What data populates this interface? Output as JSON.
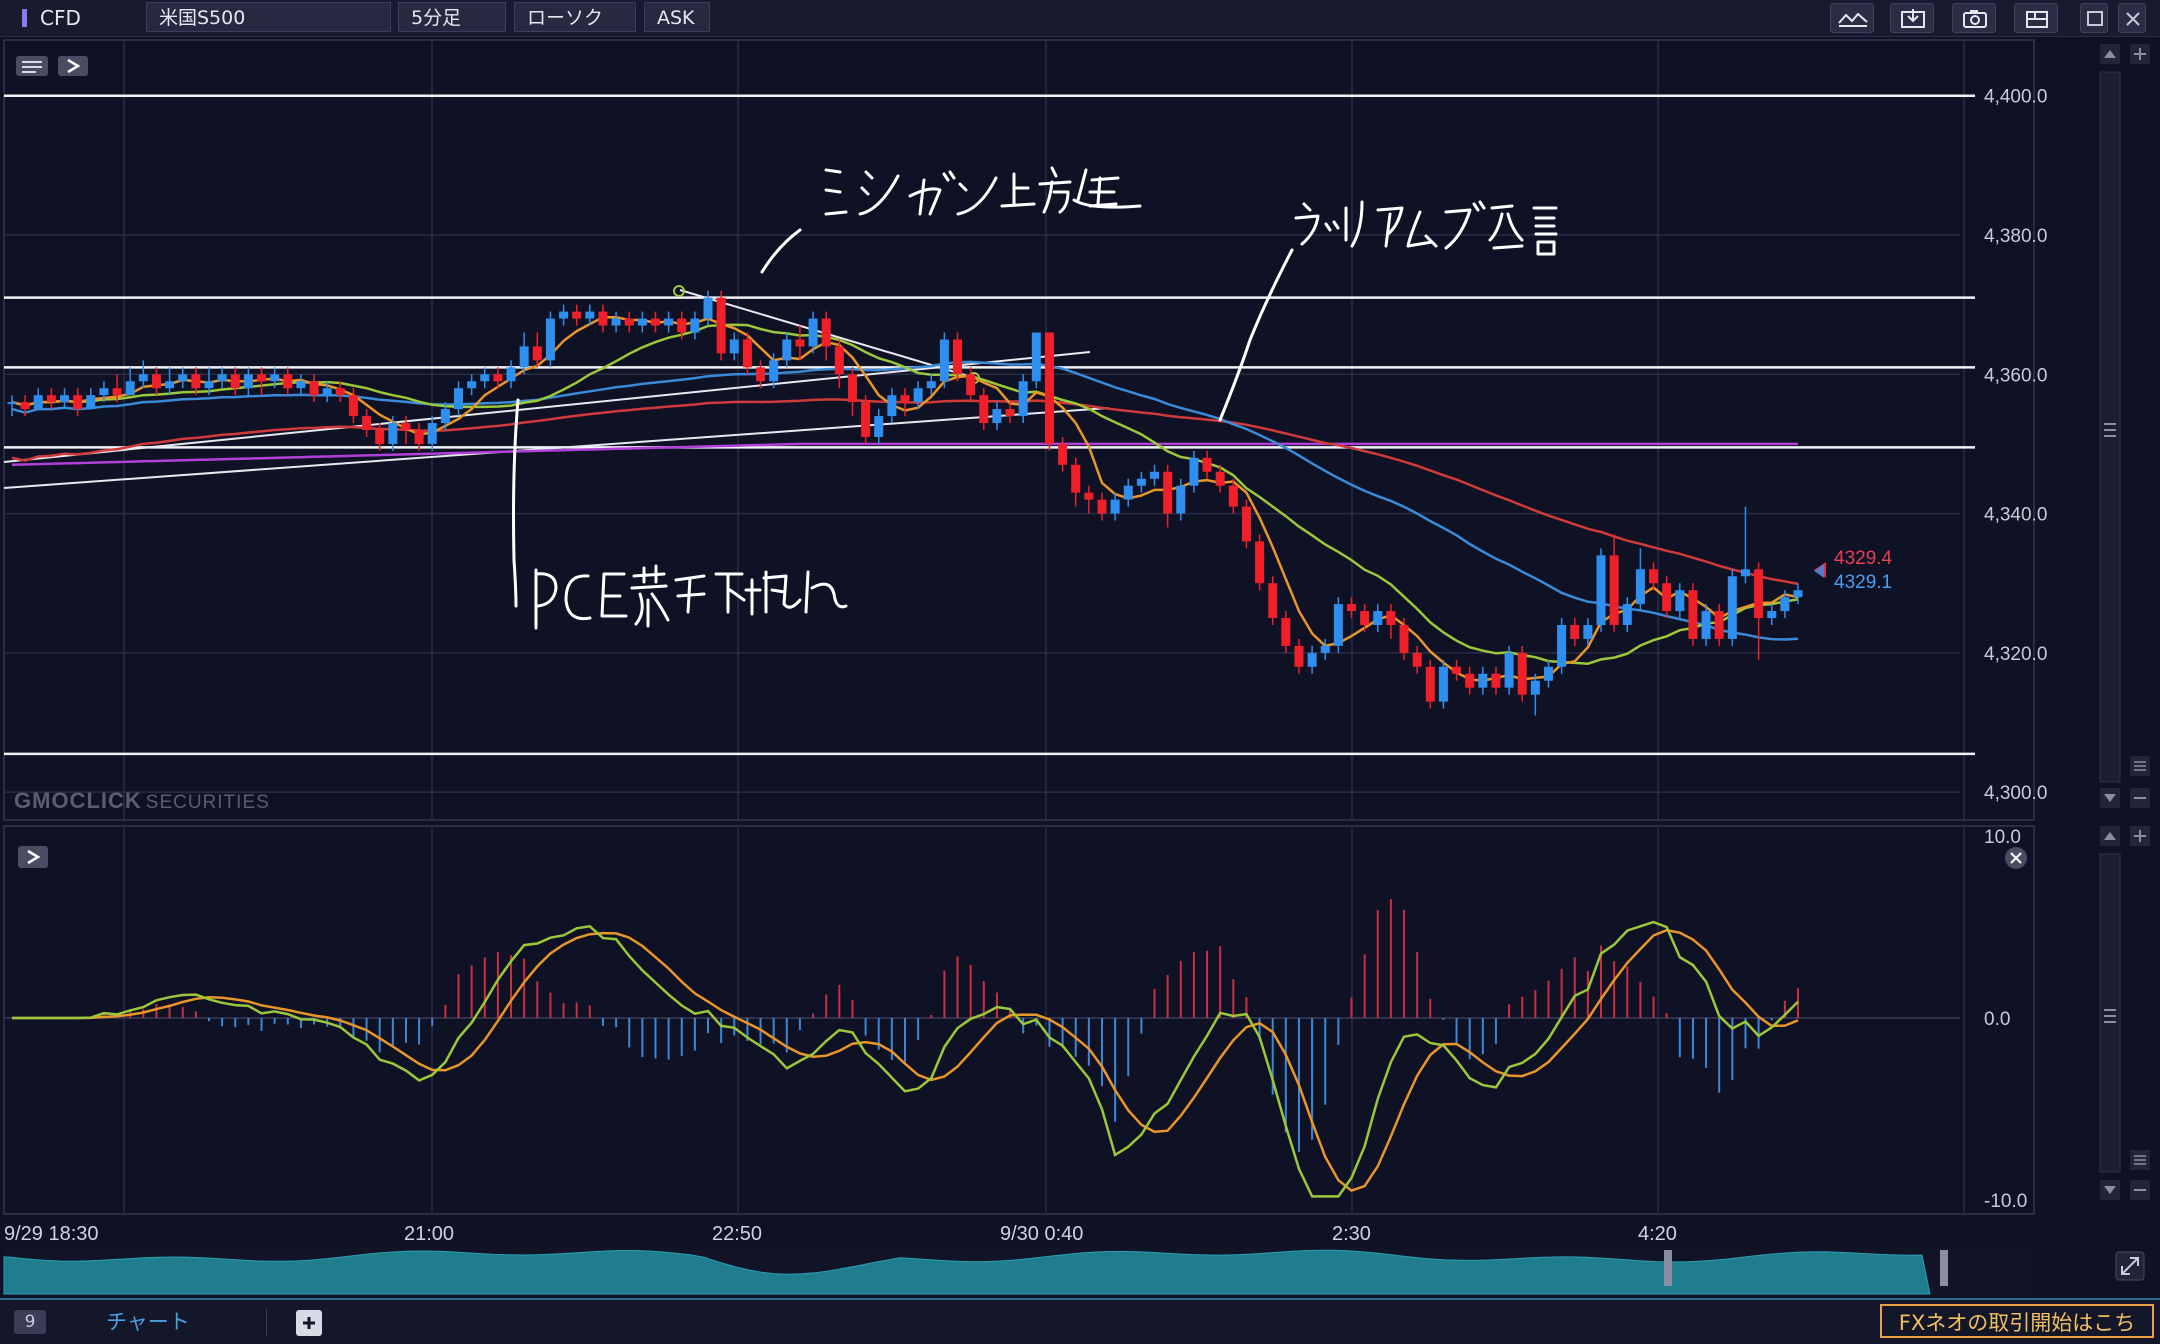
{
  "toolbar": {
    "market": "CFD",
    "symbol": "米国S500",
    "timeframe": "5分足",
    "chart_type": "ローソク",
    "price_side": "ASK",
    "icons": [
      "indicator-icon",
      "save-icon",
      "camera-icon",
      "layout-icon",
      "maximize-icon",
      "close-icon"
    ]
  },
  "watermark": {
    "brand": "GMOCLICK",
    "suffix": "SECURITIES"
  },
  "annotations": {
    "michigan": "ミシガン上方修正",
    "williams": "ウィリアムズ発言",
    "pce": "PCE若干下振れ"
  },
  "price_labels": {
    "ask": "4329.4",
    "bid": "4329.1"
  },
  "colors": {
    "up": "#2f8ff0",
    "down": "#f0202a",
    "ma_orange": "#e8952a",
    "ma_green": "#9bc83a",
    "ma_blue": "#3a8ad8",
    "ma_red": "#d03a3a",
    "ma_purple": "#b040d8"
  },
  "bottom": {
    "tab_count": "9",
    "tab_label": "チャート",
    "cta": "FXネオの取引開始はこち"
  },
  "chart_data": [
    {
      "type": "candlestick",
      "panel": "price",
      "y_ticks": [
        "4,400.0",
        "4,380.0",
        "4,360.0",
        "4,340.0",
        "4,320.0",
        "4,300.0"
      ],
      "ylim": [
        4296,
        4408
      ],
      "x_ticks": [
        "9/29 18:30",
        "21:00",
        "22:50",
        "9/30 0:40",
        "2:30",
        "4:20"
      ],
      "horizontal_lines": [
        4400,
        4371,
        4361,
        4349.5,
        4305.5
      ],
      "candles": [
        [
          4356,
          4356,
          4354,
          4357
        ],
        [
          4356,
          4355,
          4354,
          4357
        ],
        [
          4355,
          4357,
          4355,
          4358
        ],
        [
          4357,
          4356,
          4355,
          4358
        ],
        [
          4356,
          4357,
          4355,
          4358
        ],
        [
          4357,
          4355,
          4354,
          4358
        ],
        [
          4355,
          4357,
          4355,
          4358
        ],
        [
          4357,
          4358,
          4356,
          4359
        ],
        [
          4358,
          4357,
          4356,
          4360
        ],
        [
          4357,
          4359,
          4357,
          4361
        ],
        [
          4359,
          4360,
          4358,
          4362
        ],
        [
          4360,
          4358,
          4357,
          4361
        ],
        [
          4358,
          4359,
          4357,
          4361
        ],
        [
          4359,
          4360,
          4358,
          4361
        ],
        [
          4360,
          4358,
          4357,
          4361
        ],
        [
          4358,
          4359,
          4357,
          4361
        ],
        [
          4359,
          4360,
          4358,
          4361
        ],
        [
          4360,
          4358,
          4357,
          4361
        ],
        [
          4358,
          4360,
          4357,
          4361
        ],
        [
          4360,
          4359,
          4357,
          4361
        ],
        [
          4359,
          4360,
          4358,
          4361
        ],
        [
          4360,
          4358,
          4357,
          4361
        ],
        [
          4358,
          4359,
          4357,
          4360
        ],
        [
          4359,
          4357,
          4356,
          4360
        ],
        [
          4357,
          4358,
          4356,
          4359
        ],
        [
          4358,
          4357,
          4356,
          4359
        ],
        [
          4357,
          4354,
          4353,
          4358
        ],
        [
          4354,
          4352,
          4351,
          4355
        ],
        [
          4352,
          4350,
          4349,
          4353
        ],
        [
          4350,
          4353,
          4349,
          4354
        ],
        [
          4353,
          4352,
          4350,
          4354
        ],
        [
          4352,
          4350,
          4349,
          4353
        ],
        [
          4350,
          4353,
          4349,
          4354
        ],
        [
          4353,
          4355,
          4352,
          4356
        ],
        [
          4355,
          4358,
          4354,
          4359
        ],
        [
          4358,
          4359,
          4357,
          4360
        ],
        [
          4359,
          4360,
          4358,
          4361
        ],
        [
          4360,
          4359,
          4358,
          4361
        ],
        [
          4359,
          4361,
          4358,
          4362
        ],
        [
          4361,
          4364,
          4360,
          4366
        ],
        [
          4364,
          4362,
          4361,
          4366
        ],
        [
          4362,
          4368,
          4361,
          4369
        ],
        [
          4368,
          4369,
          4367,
          4370
        ],
        [
          4369,
          4368,
          4367,
          4370
        ],
        [
          4368,
          4369,
          4367,
          4370
        ],
        [
          4369,
          4367,
          4366,
          4370
        ],
        [
          4367,
          4368,
          4366,
          4369
        ],
        [
          4368,
          4367,
          4366,
          4369
        ],
        [
          4367,
          4368,
          4366,
          4369
        ],
        [
          4368,
          4367,
          4366,
          4369
        ],
        [
          4367,
          4368,
          4366,
          4369
        ],
        [
          4368,
          4366,
          4365,
          4369
        ],
        [
          4366,
          4368,
          4365,
          4369
        ],
        [
          4368,
          4371,
          4367,
          4372
        ],
        [
          4371,
          4363,
          4362,
          4372
        ],
        [
          4363,
          4365,
          4362,
          4366
        ],
        [
          4365,
          4361,
          4360,
          4366
        ],
        [
          4361,
          4359,
          4358,
          4362
        ],
        [
          4359,
          4362,
          4358,
          4363
        ],
        [
          4362,
          4365,
          4361,
          4366
        ],
        [
          4365,
          4364,
          4362,
          4367
        ],
        [
          4364,
          4368,
          4363,
          4369
        ],
        [
          4368,
          4364,
          4362,
          4369
        ],
        [
          4364,
          4360,
          4358,
          4365
        ],
        [
          4360,
          4356,
          4354,
          4361
        ],
        [
          4356,
          4351,
          4350,
          4357
        ],
        [
          4351,
          4354,
          4350,
          4355
        ],
        [
          4354,
          4357,
          4353,
          4358
        ],
        [
          4357,
          4356,
          4354,
          4358
        ],
        [
          4356,
          4358,
          4355,
          4359
        ],
        [
          4358,
          4359,
          4357,
          4360
        ],
        [
          4359,
          4365,
          4358,
          4366
        ],
        [
          4365,
          4360,
          4359,
          4366
        ],
        [
          4360,
          4357,
          4356,
          4361
        ],
        [
          4357,
          4353,
          4352,
          4358
        ],
        [
          4353,
          4355,
          4352,
          4356
        ],
        [
          4355,
          4354,
          4353,
          4356
        ],
        [
          4354,
          4359,
          4353,
          4360
        ],
        [
          4359,
          4366,
          4358,
          4366
        ],
        [
          4366,
          4350,
          4349,
          4366
        ],
        [
          4350,
          4347,
          4346,
          4351
        ],
        [
          4347,
          4343,
          4341,
          4348
        ],
        [
          4343,
          4342,
          4340,
          4344
        ],
        [
          4342,
          4340,
          4339,
          4343
        ],
        [
          4340,
          4342,
          4339,
          4343
        ],
        [
          4342,
          4344,
          4341,
          4345
        ],
        [
          4344,
          4345,
          4343,
          4346
        ],
        [
          4345,
          4346,
          4344,
          4347
        ],
        [
          4346,
          4340,
          4338,
          4347
        ],
        [
          4340,
          4344,
          4339,
          4345
        ],
        [
          4344,
          4348,
          4343,
          4349
        ],
        [
          4348,
          4346,
          4345,
          4349
        ],
        [
          4346,
          4344,
          4343,
          4347
        ],
        [
          4344,
          4341,
          4340,
          4345
        ],
        [
          4341,
          4336,
          4335,
          4342
        ],
        [
          4336,
          4330,
          4329,
          4337
        ],
        [
          4330,
          4325,
          4324,
          4331
        ],
        [
          4325,
          4321,
          4320,
          4326
        ],
        [
          4321,
          4318,
          4317,
          4322
        ],
        [
          4318,
          4320,
          4317,
          4321
        ],
        [
          4320,
          4321,
          4319,
          4322
        ],
        [
          4321,
          4327,
          4320,
          4328
        ],
        [
          4327,
          4326,
          4325,
          4328
        ],
        [
          4326,
          4324,
          4323,
          4327
        ],
        [
          4324,
          4326,
          4323,
          4327
        ],
        [
          4326,
          4324,
          4322,
          4327
        ],
        [
          4324,
          4320,
          4319,
          4325
        ],
        [
          4320,
          4318,
          4317,
          4321
        ],
        [
          4318,
          4313,
          4312,
          4319
        ],
        [
          4313,
          4318,
          4312,
          4319
        ],
        [
          4318,
          4317,
          4316,
          4319
        ],
        [
          4317,
          4315,
          4314,
          4318
        ],
        [
          4315,
          4317,
          4314,
          4318
        ],
        [
          4317,
          4315,
          4314,
          4318
        ],
        [
          4315,
          4320,
          4314,
          4321
        ],
        [
          4320,
          4314,
          4313,
          4321
        ],
        [
          4314,
          4316,
          4311,
          4317
        ],
        [
          4316,
          4318,
          4315,
          4319
        ],
        [
          4318,
          4324,
          4317,
          4325
        ],
        [
          4324,
          4322,
          4321,
          4325
        ],
        [
          4322,
          4324,
          4321,
          4325
        ],
        [
          4324,
          4334,
          4323,
          4335
        ],
        [
          4334,
          4324,
          4323,
          4337
        ],
        [
          4324,
          4327,
          4323,
          4328
        ],
        [
          4327,
          4332,
          4326,
          4335
        ],
        [
          4332,
          4330,
          4329,
          4333
        ],
        [
          4330,
          4326,
          4325,
          4331
        ],
        [
          4326,
          4329,
          4325,
          4330
        ],
        [
          4329,
          4322,
          4321,
          4330
        ],
        [
          4322,
          4326,
          4321,
          4327
        ],
        [
          4326,
          4322,
          4321,
          4327
        ],
        [
          4322,
          4331,
          4321,
          4332
        ],
        [
          4331,
          4332,
          4330,
          4341
        ],
        [
          4332,
          4325,
          4319,
          4333
        ],
        [
          4325,
          4326,
          4324,
          4327
        ],
        [
          4326,
          4328,
          4325,
          4329
        ],
        [
          4328,
          4329,
          4327,
          4330
        ]
      ]
    },
    {
      "type": "histogram+lines",
      "panel": "oscillator",
      "y_ticks": [
        "10.0",
        "0.0",
        "-10.0"
      ],
      "ylim": [
        -10,
        10
      ]
    }
  ]
}
